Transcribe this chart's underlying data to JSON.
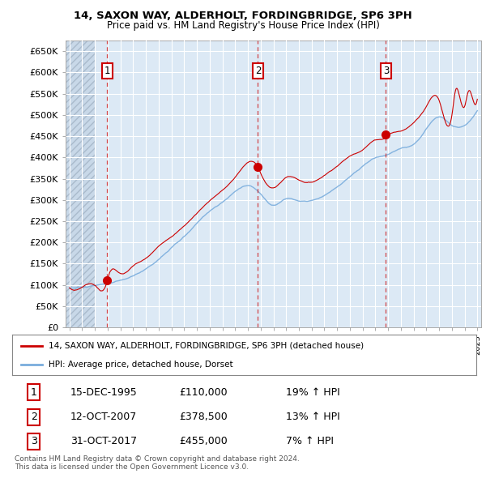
{
  "title": "14, SAXON WAY, ALDERHOLT, FORDINGBRIDGE, SP6 3PH",
  "subtitle": "Price paid vs. HM Land Registry's House Price Index (HPI)",
  "ylim": [
    0,
    675000
  ],
  "yticks": [
    0,
    50000,
    100000,
    150000,
    200000,
    250000,
    300000,
    350000,
    400000,
    450000,
    500000,
    550000,
    600000,
    650000
  ],
  "xlim_start": 1992.7,
  "xlim_end": 2025.3,
  "sales": [
    {
      "date_num": 1995.96,
      "price": 110000,
      "label": "1"
    },
    {
      "date_num": 2007.79,
      "price": 378500,
      "label": "2"
    },
    {
      "date_num": 2017.83,
      "price": 455000,
      "label": "3"
    }
  ],
  "vlines": [
    1995.96,
    2007.79,
    2017.83
  ],
  "sale_color": "#cc0000",
  "hpi_color": "#7aaddd",
  "legend_entries": [
    "14, SAXON WAY, ALDERHOLT, FORDINGBRIDGE, SP6 3PH (detached house)",
    "HPI: Average price, detached house, Dorset"
  ],
  "table_data": [
    [
      "1",
      "15-DEC-1995",
      "£110,000",
      "19% ↑ HPI"
    ],
    [
      "2",
      "12-OCT-2007",
      "£378,500",
      "13% ↑ HPI"
    ],
    [
      "3",
      "31-OCT-2017",
      "£455,000",
      "7% ↑ HPI"
    ]
  ],
  "footnote": "Contains HM Land Registry data © Crown copyright and database right 2024.\nThis data is licensed under the Open Government Licence v3.0.",
  "plot_bg_color": "#dce9f5",
  "grid_color": "#ffffff",
  "hatch_end": 1995.0
}
